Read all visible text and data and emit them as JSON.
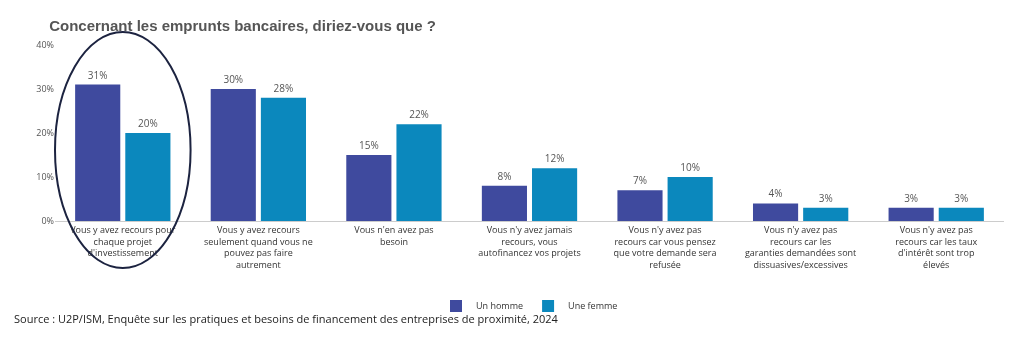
{
  "chart_data": {
    "type": "bar",
    "title": "Concernant les emprunts bancaires, diriez-vous que ?",
    "categories": [
      "Vous y avez recours pour chaque projet d'investissement",
      "Vous y avez recours seulement quand vous ne pouvez pas faire autrement",
      "Vous n'en avez pas besoin",
      "Vous n'y avez jamais recours, vous autofinancez vos projets",
      "Vous n'y avez pas recours car vous pensez que votre demande sera refusée",
      "Vous n'y avez pas recours car les garanties demandées sont dissuasives/excessives",
      "Vous n'y avez pas recours car les taux d'intérêt sont trop élevés"
    ],
    "series": [
      {
        "name": "Un homme",
        "color": "#3f4a9e",
        "values": [
          31,
          30,
          15,
          8,
          7,
          4,
          3
        ],
        "value_labels": [
          "31%",
          "30%",
          "15%",
          "8%",
          "7%",
          "4%",
          "3%"
        ]
      },
      {
        "name": "Une femme",
        "color": "#0b88bd",
        "values": [
          20,
          28,
          22,
          12,
          10,
          3,
          3
        ],
        "value_labels": [
          "20%",
          "28%",
          "22%",
          "12%",
          "10%",
          "3%",
          "3%"
        ]
      }
    ],
    "ylim": [
      0,
      40
    ],
    "yticks": [
      {
        "value": 0,
        "label": "0%"
      },
      {
        "value": 10,
        "label": "10%"
      },
      {
        "value": 20,
        "label": "20%"
      },
      {
        "value": 30,
        "label": "30%"
      },
      {
        "value": 40,
        "label": "40%"
      }
    ],
    "grid": false,
    "legend": "bottom",
    "annotations": [
      "Source : U2P/ISM, Enquête sur les pratiques et besoins de financement des entreprises de proximité, 2024"
    ]
  }
}
